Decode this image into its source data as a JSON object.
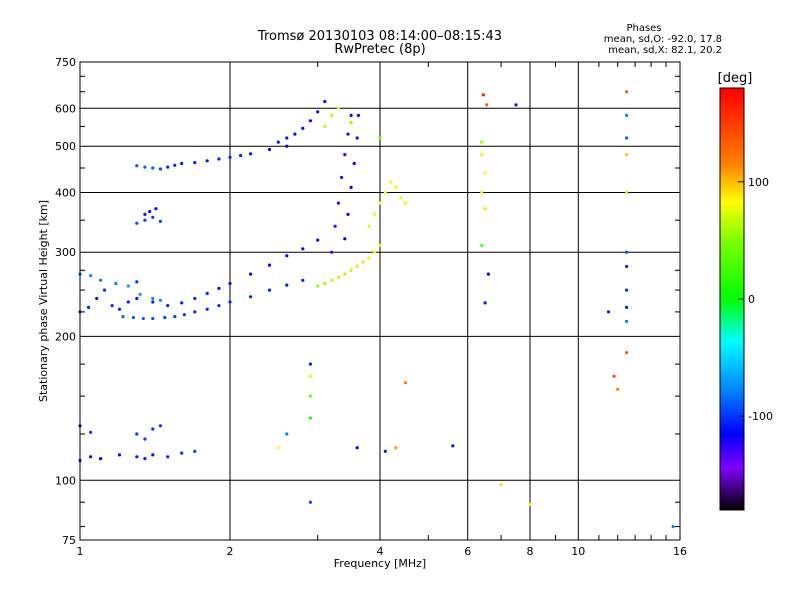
{
  "chart_data": {
    "type": "scatter",
    "title": "Tromsø 20130103 08:14:00–08:15:43",
    "subtitle": "RwPretec (8p)",
    "xlabel": "Frequency [MHz]",
    "ylabel": "Stationary phase Virtual Height [km]",
    "x_scale": "log",
    "y_scale": "log",
    "xlim": [
      1,
      16
    ],
    "ylim": [
      75,
      750
    ],
    "x_ticks": [
      1,
      2,
      4,
      6,
      8,
      10,
      16
    ],
    "x_tick_labels": [
      "1",
      "2",
      "4",
      "6",
      "8",
      "10",
      "16"
    ],
    "x_minor_ticks": [
      3,
      5,
      7,
      9,
      11,
      12,
      13,
      14,
      15
    ],
    "y_ticks": [
      75,
      100,
      200,
      300,
      400,
      500,
      600,
      750
    ],
    "y_tick_labels": [
      "75",
      "100",
      "200",
      "300",
      "400",
      "500",
      "600",
      "750"
    ],
    "y_minor_ticks": [
      80,
      90,
      125,
      150,
      175,
      225,
      250,
      275,
      350,
      450,
      550,
      650,
      700
    ],
    "grid": true,
    "legend": {
      "heading": "Phases",
      "line1": "mean, sd,O: -92.0, 17.8",
      "line2": "mean, sd,X:  82.1, 20.2"
    },
    "colorbar": {
      "label": "[deg]",
      "range": [
        -180,
        180
      ],
      "ticks": [
        100,
        0,
        -100
      ],
      "tick_labels": [
        "100",
        "0",
        "-100"
      ],
      "colormap": "rainbow"
    },
    "series": [
      {
        "x": [
          1.0,
          1.04,
          1.08,
          1.12,
          1.16,
          1.2,
          1.25,
          1.3
        ],
        "y": [
          225,
          230,
          240,
          250,
          232,
          228,
          236,
          260
        ],
        "phase": [
          -95,
          -93,
          -98,
          -90,
          -92,
          -94,
          -96,
          -91
        ]
      },
      {
        "x": [
          1.0,
          1.05,
          1.1,
          1.18,
          1.25,
          1.32,
          1.4,
          1.45
        ],
        "y": [
          270,
          268,
          262,
          258,
          255,
          245,
          240,
          238
        ],
        "phase": [
          -60,
          -55,
          -62,
          -58,
          -50,
          -52,
          -57,
          -54
        ]
      },
      {
        "x": [
          1.22,
          1.28,
          1.34,
          1.4,
          1.48,
          1.55,
          1.62,
          1.7,
          1.8,
          1.9,
          2.0,
          2.2,
          2.4,
          2.6,
          2.8
        ],
        "y": [
          220,
          219,
          218,
          218,
          219,
          220,
          222,
          225,
          228,
          232,
          236,
          242,
          250,
          256,
          262
        ],
        "phase": [
          -70,
          -72,
          -75,
          -78,
          -80,
          -85,
          -88,
          -90,
          -92,
          -94,
          -95,
          -96,
          -97,
          -98,
          -99
        ]
      },
      {
        "x": [
          1.3,
          1.4,
          1.5,
          1.6,
          1.7,
          1.8,
          1.9,
          2.0,
          2.2,
          2.4,
          2.6,
          2.8,
          3.0
        ],
        "y": [
          240,
          236,
          232,
          235,
          240,
          246,
          252,
          258,
          270,
          282,
          295,
          305,
          318
        ],
        "phase": [
          -100,
          -98,
          -96,
          -95,
          -97,
          -100,
          -103,
          -105,
          -108,
          -110,
          -112,
          -115,
          -118
        ]
      },
      {
        "x": [
          1.3,
          1.35,
          1.4,
          1.45,
          1.5,
          1.55,
          1.6,
          1.7,
          1.8,
          1.9,
          2.0,
          2.1,
          2.2,
          2.4,
          2.6
        ],
        "y": [
          455,
          452,
          450,
          448,
          452,
          456,
          460,
          462,
          466,
          470,
          474,
          478,
          482,
          492,
          500
        ],
        "phase": [
          -75,
          -70,
          -72,
          -80,
          -95,
          -98,
          -100,
          -102,
          -104,
          -98,
          -96,
          -100,
          -105,
          -108,
          -110
        ]
      },
      {
        "x": [
          2.5,
          2.6,
          2.7,
          2.8,
          2.9,
          3.0,
          3.1
        ],
        "y": [
          510,
          520,
          530,
          545,
          565,
          590,
          620
        ],
        "phase": [
          -100,
          -102,
          -105,
          -108,
          -112,
          -115,
          -118
        ]
      },
      {
        "x": [
          1.3,
          1.35,
          1.4,
          1.45
        ],
        "y": [
          345,
          350,
          355,
          348
        ],
        "phase": [
          -80,
          -85,
          -88,
          -82
        ]
      },
      {
        "x": [
          1.35,
          1.38,
          1.42
        ],
        "y": [
          360,
          365,
          370
        ],
        "phase": [
          -98,
          -100,
          -102
        ]
      },
      {
        "x": [
          1.0,
          1.05,
          1.1,
          1.2,
          1.3,
          1.35,
          1.4,
          1.5,
          1.6,
          1.7
        ],
        "y": [
          110,
          112,
          111,
          113,
          112,
          111,
          113,
          112,
          114,
          115
        ],
        "phase": [
          -110,
          -108,
          -112,
          -105,
          -100,
          -98,
          -102,
          -95,
          -90,
          -88
        ]
      },
      {
        "x": [
          1.0,
          1.05,
          1.3,
          1.35,
          1.4,
          1.45
        ],
        "y": [
          130,
          126,
          125,
          122,
          128,
          130
        ],
        "phase": [
          -95,
          -92,
          -88,
          -85,
          -90,
          -93
        ]
      },
      {
        "x": [
          3.0,
          3.1,
          3.2,
          3.3,
          3.4,
          3.5,
          3.6,
          3.7,
          3.8,
          3.9,
          4.0
        ],
        "y": [
          255,
          258,
          262,
          266,
          270,
          275,
          280,
          286,
          292,
          300,
          310
        ],
        "phase": [
          60,
          65,
          70,
          72,
          75,
          78,
          80,
          82,
          84,
          86,
          88
        ]
      },
      {
        "x": [
          3.2,
          3.25,
          3.3,
          3.35,
          3.4,
          3.45,
          3.5
        ],
        "y": [
          300,
          340,
          380,
          430,
          480,
          530,
          580
        ],
        "phase": [
          -130,
          -132,
          -128,
          -125,
          -122,
          -120,
          -118
        ]
      },
      {
        "x": [
          3.4,
          3.45,
          3.5,
          3.55,
          3.6,
          3.62
        ],
        "y": [
          320,
          360,
          410,
          460,
          520,
          580
        ],
        "phase": [
          -110,
          -108,
          -112,
          -115,
          -118,
          -120
        ]
      },
      {
        "x": [
          3.8,
          3.9,
          4.0,
          4.1,
          4.2,
          4.3,
          4.4,
          4.5
        ],
        "y": [
          340,
          360,
          380,
          400,
          420,
          410,
          390,
          380
        ],
        "phase": [
          85,
          90,
          95,
          100,
          98,
          96,
          92,
          90
        ]
      },
      {
        "x": [
          3.1,
          3.2,
          3.3,
          3.5,
          4.0
        ],
        "y": [
          550,
          580,
          600,
          560,
          520
        ],
        "phase": [
          70,
          75,
          80,
          55,
          40
        ]
      },
      {
        "x": [
          6.4,
          6.4,
          6.5,
          6.4,
          6.5,
          6.4,
          6.6,
          6.5
        ],
        "y": [
          510,
          480,
          440,
          400,
          370,
          310,
          270,
          235
        ],
        "phase": [
          60,
          90,
          100,
          110,
          80,
          30,
          -110,
          -100
        ]
      },
      {
        "x": [
          6.45,
          6.55,
          7.5,
          12.5,
          12.5,
          12.5,
          12.5,
          12.5,
          12.5
        ],
        "y": [
          640,
          610,
          610,
          650,
          580,
          520,
          480,
          400,
          300
        ],
        "phase": [
          170,
          150,
          -100,
          150,
          -60,
          -70,
          120,
          60,
          -80
        ]
      },
      {
        "x": [
          12.5,
          12.5,
          12.5,
          12.5,
          12.5,
          11.5,
          11.8,
          12.0
        ],
        "y": [
          280,
          250,
          230,
          215,
          185,
          225,
          165,
          155
        ],
        "phase": [
          -100,
          -90,
          -95,
          -60,
          150,
          -100,
          155,
          140
        ]
      },
      {
        "x": [
          2.9,
          2.9,
          2.9,
          2.9,
          2.9,
          2.5,
          2.6
        ],
        "y": [
          175,
          165,
          150,
          135,
          90,
          117,
          125
        ],
        "phase": [
          -100,
          80,
          40,
          0,
          -80,
          100,
          -60
        ]
      },
      {
        "x": [
          3.6,
          4.1,
          4.3,
          4.5,
          5.6,
          7.0,
          8.0,
          15.5
        ],
        "y": [
          117,
          115,
          117,
          160,
          118,
          98,
          89,
          80
        ],
        "phase": [
          -110,
          -105,
          130,
          140,
          -100,
          110,
          100,
          -60
        ]
      }
    ]
  }
}
